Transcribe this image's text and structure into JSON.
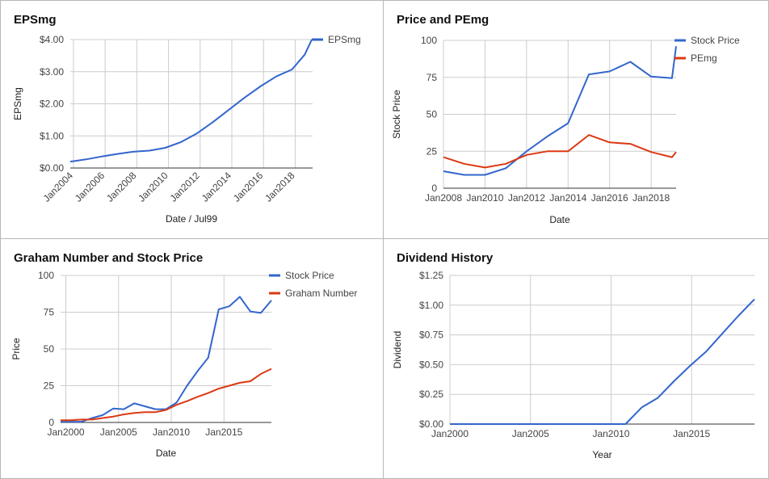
{
  "chart_data": [
    {
      "id": "eps",
      "type": "line",
      "title": "EPSmg",
      "xlabel": "Date / Jul99",
      "ylabel": "EPSmg",
      "xlim": [
        2003.8,
        2019.1
      ],
      "ylim": [
        0,
        4
      ],
      "yticks": [
        0,
        1,
        2,
        3,
        4
      ],
      "ytick_labels": [
        "$0.00",
        "$1.00",
        "$2.00",
        "$3.00",
        "$4.00"
      ],
      "xticks": [
        2004,
        2006,
        2008,
        2010,
        2012,
        2014,
        2016,
        2018
      ],
      "xtick_labels": [
        "Jan2004",
        "Jan2006",
        "Jan2008",
        "Jan2010",
        "Jan2012",
        "Jan2014",
        "Jan2016",
        "Jan2018"
      ],
      "x_label_rotation": -45,
      "grid": true,
      "legend": "right",
      "series": [
        {
          "name": "EPSmg",
          "color": "#3366cc",
          "points": [
            [
              2003.8,
              0.2
            ],
            [
              2004.8,
              0.27
            ],
            [
              2005.8,
              0.36
            ],
            [
              2006.8,
              0.44
            ],
            [
              2007.8,
              0.51
            ],
            [
              2008.8,
              0.54
            ],
            [
              2009.8,
              0.63
            ],
            [
              2010.8,
              0.81
            ],
            [
              2011.8,
              1.08
            ],
            [
              2012.8,
              1.43
            ],
            [
              2013.8,
              1.81
            ],
            [
              2014.8,
              2.19
            ],
            [
              2015.8,
              2.54
            ],
            [
              2016.8,
              2.85
            ],
            [
              2017.8,
              3.07
            ],
            [
              2018.6,
              3.53
            ],
            [
              2019.05,
              4.0
            ]
          ]
        }
      ]
    },
    {
      "id": "pe",
      "type": "line",
      "title": "Price and PEmg",
      "xlabel": "Date",
      "ylabel": "Stock Price",
      "xlim": [
        2008,
        2019.2
      ],
      "ylim": [
        0,
        100
      ],
      "yticks": [
        0,
        25,
        50,
        75,
        100
      ],
      "ytick_labels": [
        "0",
        "25",
        "50",
        "75",
        "100"
      ],
      "xticks": [
        2008,
        2010,
        2012,
        2014,
        2016,
        2018
      ],
      "xtick_labels": [
        "Jan2008",
        "Jan2010",
        "Jan2012",
        "Jan2014",
        "Jan2016",
        "Jan2018"
      ],
      "x_label_rotation": 0,
      "grid": true,
      "legend": "right",
      "series": [
        {
          "name": "Stock Price",
          "color": "#3366cc",
          "points": [
            [
              2008,
              11.5
            ],
            [
              2009,
              9
            ],
            [
              2010,
              9
            ],
            [
              2011,
              13.5
            ],
            [
              2012,
              25
            ],
            [
              2013,
              35
            ],
            [
              2014,
              44
            ],
            [
              2015,
              77
            ],
            [
              2016,
              79
            ],
            [
              2017,
              85.5
            ],
            [
              2018,
              75.5
            ],
            [
              2019,
              74.5
            ],
            [
              2019.2,
              96
            ]
          ]
        },
        {
          "name": "PEmg",
          "color": "#dc3912",
          "points": [
            [
              2008,
              21
            ],
            [
              2009,
              16.5
            ],
            [
              2010,
              14
            ],
            [
              2011,
              16.5
            ],
            [
              2012,
              22.5
            ],
            [
              2013,
              25
            ],
            [
              2014,
              25
            ],
            [
              2015,
              36
            ],
            [
              2016,
              31
            ],
            [
              2017,
              30
            ],
            [
              2018,
              24.5
            ],
            [
              2019,
              21
            ],
            [
              2019.2,
              24.5
            ]
          ]
        }
      ]
    },
    {
      "id": "graham",
      "type": "line",
      "title": "Graham Number and Stock Price",
      "xlabel": "Date",
      "ylabel": "Price",
      "xlim": [
        1999.5,
        2019.5
      ],
      "ylim": [
        0,
        100
      ],
      "yticks": [
        0,
        25,
        50,
        75,
        100
      ],
      "ytick_labels": [
        "0",
        "25",
        "50",
        "75",
        "100"
      ],
      "xticks": [
        2000,
        2005,
        2010,
        2015
      ],
      "xtick_labels": [
        "Jan2000",
        "Jan2005",
        "Jan2010",
        "Jan2015"
      ],
      "x_label_rotation": 0,
      "grid": true,
      "legend": "right",
      "series": [
        {
          "name": "Stock Price",
          "color": "#3366cc",
          "points": [
            [
              1999.5,
              0.5
            ],
            [
              2000.5,
              0.5
            ],
            [
              2001.5,
              0.5
            ],
            [
              2002.5,
              3
            ],
            [
              2003.5,
              5
            ],
            [
              2004.5,
              9.5
            ],
            [
              2005.5,
              9
            ],
            [
              2006.5,
              13
            ],
            [
              2007.5,
              11
            ],
            [
              2008.5,
              9
            ],
            [
              2009.5,
              9
            ],
            [
              2010.5,
              13.5
            ],
            [
              2011.5,
              25
            ],
            [
              2012.5,
              35
            ],
            [
              2013.5,
              44
            ],
            [
              2014.5,
              77
            ],
            [
              2015.5,
              79
            ],
            [
              2016.5,
              85.5
            ],
            [
              2017.5,
              75.5
            ],
            [
              2018.5,
              74.5
            ],
            [
              2019.5,
              83
            ]
          ]
        },
        {
          "name": "Graham Number",
          "color": "#dc3912",
          "points": [
            [
              1999.5,
              1.5
            ],
            [
              2000.5,
              1.5
            ],
            [
              2001.5,
              2
            ],
            [
              2002.5,
              2
            ],
            [
              2003.5,
              3
            ],
            [
              2004.5,
              4
            ],
            [
              2005.5,
              5.5
            ],
            [
              2006.5,
              6.5
            ],
            [
              2007.5,
              7
            ],
            [
              2008.5,
              7
            ],
            [
              2009.5,
              8.5
            ],
            [
              2010.5,
              12
            ],
            [
              2011.5,
              14.5
            ],
            [
              2012.5,
              17.5
            ],
            [
              2013.5,
              20
            ],
            [
              2014.5,
              23
            ],
            [
              2015.5,
              25
            ],
            [
              2016.5,
              27
            ],
            [
              2017.5,
              28
            ],
            [
              2018.5,
              33
            ],
            [
              2019.5,
              36.5
            ]
          ]
        }
      ]
    },
    {
      "id": "div",
      "type": "line",
      "title": "Dividend History",
      "xlabel": "Year",
      "ylabel": "Dividend",
      "xlim": [
        2000,
        2018.9
      ],
      "ylim": [
        0,
        1.25
      ],
      "yticks": [
        0,
        0.25,
        0.5,
        0.75,
        1.0,
        1.25
      ],
      "ytick_labels": [
        "$0.00",
        "$0.25",
        "$0.50",
        "$0.75",
        "$1.00",
        "$1.25"
      ],
      "xticks": [
        2000,
        2005,
        2010,
        2015
      ],
      "xtick_labels": [
        "Jan2000",
        "Jan2005",
        "Jan2010",
        "Jan2015"
      ],
      "x_label_rotation": 0,
      "grid": true,
      "legend": "none",
      "series": [
        {
          "name": "",
          "color": "#3366cc",
          "points": [
            [
              2000,
              0
            ],
            [
              2001,
              0
            ],
            [
              2002,
              0
            ],
            [
              2003,
              0
            ],
            [
              2004,
              0
            ],
            [
              2005,
              0
            ],
            [
              2006,
              0
            ],
            [
              2007,
              0
            ],
            [
              2008,
              0
            ],
            [
              2009,
              0
            ],
            [
              2010,
              0
            ],
            [
              2010.9,
              0
            ],
            [
              2011.9,
              0.14
            ],
            [
              2012.9,
              0.22
            ],
            [
              2013.9,
              0.36
            ],
            [
              2014.9,
              0.49
            ],
            [
              2015.9,
              0.61
            ],
            [
              2016.9,
              0.76
            ],
            [
              2017.9,
              0.91
            ],
            [
              2018.9,
              1.05
            ]
          ]
        }
      ]
    }
  ]
}
